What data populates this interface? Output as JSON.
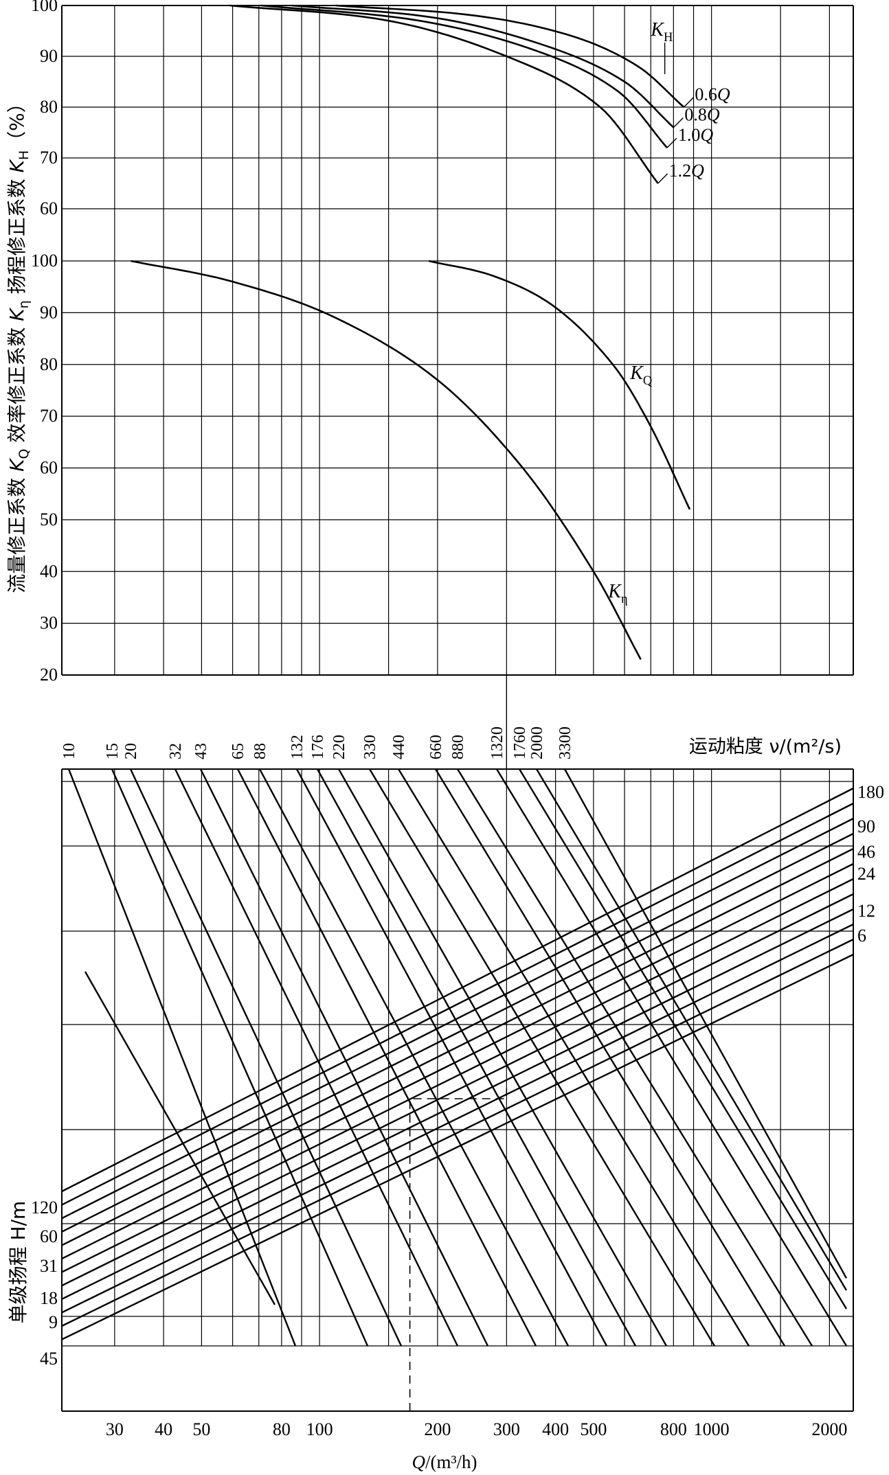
{
  "chart_data": [
    {
      "type": "line",
      "panel": "upper",
      "xscale": "log",
      "xlim": [
        22,
        2300
      ],
      "ylim": [
        20,
        100
      ],
      "yticks_kh": [
        100,
        90,
        80,
        70,
        60
      ],
      "yticks_lower": [
        100,
        90,
        80,
        70,
        60,
        50,
        40,
        30,
        20
      ],
      "ylabel": {
        "pre": "流量修正系数 ",
        "kq_k": "K",
        "kq_sub": "Q",
        "mid1": " 效率修正系数 ",
        "keta_k": "K",
        "keta_sub": "η",
        "mid2": " 扬程修正系数 ",
        "kh_k": "K",
        "kh_sub": "H",
        "post": "（%）"
      },
      "kh_series": [
        {
          "label": "0.6Q",
          "x": [
            110,
            250,
            440,
            650,
            850
          ],
          "y": [
            100,
            98,
            94,
            88,
            80
          ]
        },
        {
          "label": "0.8Q",
          "x": [
            85,
            200,
            380,
            600,
            800
          ],
          "y": [
            100,
            97.5,
            92,
            85,
            76
          ]
        },
        {
          "label": "1.0Q",
          "x": [
            71,
            180,
            360,
            580,
            770
          ],
          "y": [
            100,
            97,
            91,
            83,
            72
          ]
        },
        {
          "label": "1.2Q",
          "x": [
            59,
            150,
            300,
            520,
            730
          ],
          "y": [
            100,
            97,
            90,
            80,
            65
          ]
        }
      ],
      "kh_name": {
        "k": "K",
        "sub": "H"
      },
      "kq_series": {
        "x": [
          190,
          280,
          400,
          560,
          700,
          880
        ],
        "y": [
          100,
          97,
          91,
          80,
          68,
          52
        ]
      },
      "kq_name": {
        "k": "K",
        "sub": "Q"
      },
      "keta_series": {
        "x": [
          33,
          60,
          110,
          200,
          330,
          500,
          660
        ],
        "y": [
          100,
          96,
          89,
          77,
          60,
          40,
          23
        ]
      },
      "keta_name": {
        "k": "K",
        "sub": "η"
      }
    },
    {
      "type": "line",
      "panel": "lower",
      "xscale": "log",
      "xlabel": "Q/(m³/h)",
      "xlim": [
        22,
        2300
      ],
      "xticks": [
        30,
        40,
        50,
        80,
        100,
        200,
        300,
        400,
        500,
        800,
        1000,
        2000
      ],
      "ylabel": "单级扬程 H/m",
      "head_labels_left": [
        "120",
        "60",
        "31",
        "18",
        "9",
        "45"
      ],
      "head_labels_right": [
        "180",
        "90",
        "46",
        "24",
        "12",
        "6"
      ],
      "viscosity_title": "运动粘度 ν/(m²/s)",
      "viscosity_labels": [
        "10",
        "15",
        "20",
        "32",
        "43",
        "65",
        "88",
        "132",
        "176",
        "220",
        "330",
        "440",
        "660",
        "880",
        "1320",
        "1760",
        "2000",
        "3300"
      ],
      "example_flow": 170
    }
  ]
}
